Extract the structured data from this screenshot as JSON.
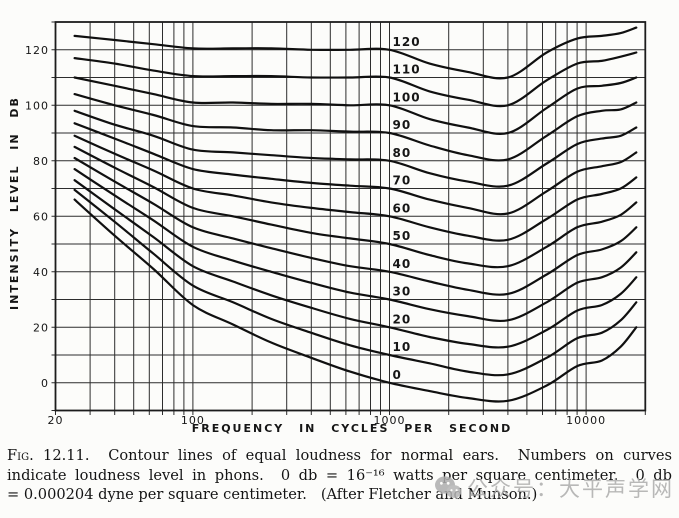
{
  "figure_caption": {
    "fig_label": "Fig. 12.11.",
    "line1_rest": "  Contour lines of equal loudness for normal ears.  Numbers on curves",
    "line2": "indicate loudness level in phons.  0 db = 16⁻¹⁶ watts per square centimeter.  0 db",
    "line3": "= 0.000204 dyne per square centimeter.   (After Fletcher and Munson.)"
  },
  "watermark": {
    "label": "公众号：大平声学网",
    "icon": "wechat-icon",
    "color": "#a8a8a8"
  },
  "chart_data": {
    "type": "line",
    "title": "",
    "xlabel": "FREQUENCY IN CYCLES PER SECOND",
    "ylabel": "INTENSITY LEVEL IN DB",
    "x_scale": "log",
    "xlim": [
      20,
      20000
    ],
    "ylim": [
      -10,
      130
    ],
    "grid": "on",
    "legend": "labels-on-curves",
    "x_ticks": [
      {
        "v": 20,
        "label": "20"
      },
      {
        "v": 100,
        "label": "100"
      },
      {
        "v": 1000,
        "label": "1000"
      },
      {
        "v": 10000,
        "label": "10000"
      }
    ],
    "y_ticks": [
      {
        "v": 0,
        "label": "0"
      },
      {
        "v": 20,
        "label": "20"
      },
      {
        "v": 40,
        "label": "40"
      },
      {
        "v": 60,
        "label": "60"
      },
      {
        "v": 80,
        "label": "80"
      },
      {
        "v": 100,
        "label": "100"
      },
      {
        "v": 120,
        "label": "120"
      }
    ],
    "grid_x": [
      20,
      30,
      40,
      50,
      60,
      70,
      80,
      90,
      100,
      200,
      300,
      400,
      500,
      600,
      700,
      800,
      900,
      1000,
      2000,
      3000,
      4000,
      5000,
      6000,
      7000,
      8000,
      9000,
      10000,
      20000
    ],
    "grid_y_step": 10,
    "x": [
      25,
      40,
      63,
      100,
      160,
      250,
      400,
      630,
      1000,
      1600,
      2500,
      4000,
      6300,
      9000,
      12000,
      15000,
      18000
    ],
    "series": [
      {
        "name": "0",
        "phon": 0,
        "values": [
          66,
          53,
          41,
          28,
          21,
          14.5,
          9,
          4,
          0,
          -3,
          -5.5,
          -6.5,
          -1,
          6,
          8,
          13,
          20
        ]
      },
      {
        "name": "10",
        "phon": 10,
        "values": [
          69.5,
          58,
          46.5,
          35,
          29,
          23,
          18,
          13.5,
          10,
          7,
          4,
          3,
          9,
          16,
          18,
          22.5,
          29
        ]
      },
      {
        "name": "20",
        "phon": 20,
        "values": [
          73,
          62.5,
          52.5,
          42,
          36.5,
          31.5,
          27,
          23,
          20,
          16.5,
          14,
          13,
          19,
          26,
          28,
          32,
          38
        ]
      },
      {
        "name": "30",
        "phon": 30,
        "values": [
          77,
          67.5,
          58.5,
          49,
          44,
          40,
          36,
          32.5,
          30,
          26.5,
          24,
          22.5,
          29,
          36,
          38,
          41.5,
          47
        ]
      },
      {
        "name": "40",
        "phon": 40,
        "values": [
          81,
          72.5,
          64.5,
          56,
          52,
          48.5,
          45,
          42,
          40,
          36.5,
          33.5,
          32,
          39,
          46,
          48,
          51,
          56
        ]
      },
      {
        "name": "50",
        "phon": 50,
        "values": [
          85,
          77.5,
          70.5,
          63,
          60,
          57,
          54,
          52,
          50,
          46,
          43,
          42,
          49,
          56,
          58,
          60.5,
          65
        ]
      },
      {
        "name": "60",
        "phon": 60,
        "values": [
          89,
          82.5,
          76.5,
          70,
          67.5,
          65,
          63,
          61.5,
          60,
          56,
          53,
          51.5,
          59,
          66,
          68,
          70,
          74
        ]
      },
      {
        "name": "70",
        "phon": 70,
        "values": [
          93.5,
          88,
          82.5,
          77,
          75,
          73.5,
          72,
          71,
          70,
          66,
          63,
          61,
          69,
          76,
          78,
          79.5,
          83
        ]
      },
      {
        "name": "80",
        "phon": 80,
        "values": [
          98,
          93,
          89,
          84,
          83,
          82,
          81,
          80.5,
          80,
          75.5,
          72.5,
          71,
          79,
          86,
          88,
          89,
          92
        ]
      },
      {
        "name": "90",
        "phon": 90,
        "values": [
          104,
          100,
          96.5,
          92.5,
          92,
          91,
          91,
          90.5,
          90,
          85.5,
          82,
          80.5,
          89,
          96,
          98,
          98.5,
          101
        ]
      },
      {
        "name": "100",
        "phon": 100,
        "values": [
          110,
          107,
          104,
          101,
          101,
          100.5,
          100.5,
          100,
          100,
          95,
          92,
          90,
          99,
          106,
          107,
          108,
          110
        ]
      },
      {
        "name": "110",
        "phon": 110,
        "values": [
          117,
          115,
          112.5,
          110.5,
          110.5,
          110.5,
          110,
          110,
          110,
          105,
          102,
          100,
          109,
          115,
          116,
          117.5,
          119
        ]
      },
      {
        "name": "120",
        "phon": 120,
        "values": [
          125,
          123.5,
          122,
          120.5,
          120.5,
          120.5,
          120,
          120,
          120,
          115,
          112,
          110,
          119,
          124,
          125,
          126,
          128
        ]
      }
    ],
    "series_label_x": 1200
  }
}
